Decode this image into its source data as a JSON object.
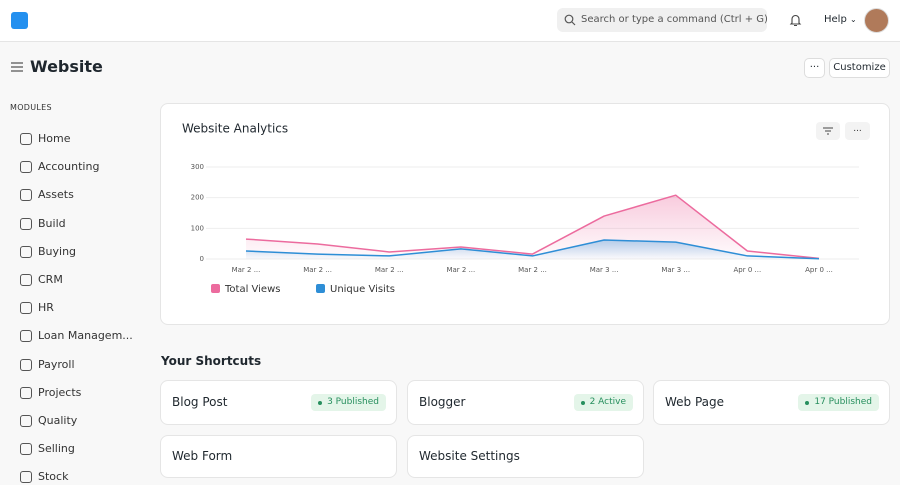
{
  "navbar": {
    "search_placeholder": "Search or type a command (Ctrl + G)",
    "help": "Help"
  },
  "header": {
    "title": "Website",
    "more": "···",
    "customize": "Customize"
  },
  "sidebar": {
    "heading": "MODULES",
    "items": [
      "Home",
      "Accounting",
      "Assets",
      "Build",
      "Buying",
      "CRM",
      "HR",
      "Loan Managem...",
      "Payroll",
      "Projects",
      "Quality",
      "Selling",
      "Stock"
    ]
  },
  "chart_data": {
    "type": "line",
    "title": "Website Analytics",
    "categories": [
      "Mar 2 ...",
      "Mar 2 ...",
      "Mar 2 ...",
      "Mar 2 ...",
      "Mar 2 ...",
      "Mar 3 ...",
      "Mar 3 ...",
      "Apr 0 ...",
      "Apr 0 ..."
    ],
    "series": [
      {
        "name": "Total Views",
        "color": "#ec6b9e",
        "values": [
          65,
          49,
          23,
          39,
          16,
          140,
          208,
          26,
          2
        ]
      },
      {
        "name": "Unique Visits",
        "color": "#2e8ed6",
        "values": [
          26,
          16,
          10,
          33,
          10,
          62,
          55,
          10,
          1
        ]
      }
    ],
    "ylim": [
      0,
      300
    ],
    "yticks": [
      0,
      100,
      200,
      300
    ],
    "grid": true
  },
  "shortcuts": {
    "heading": "Your Shortcuts",
    "items": [
      {
        "label": "Blog Post",
        "badge": "3 Published"
      },
      {
        "label": "Blogger",
        "badge": "2 Active"
      },
      {
        "label": "Web Page",
        "badge": "17 Published"
      },
      {
        "label": "Web Form"
      },
      {
        "label": "Website Settings"
      }
    ]
  }
}
